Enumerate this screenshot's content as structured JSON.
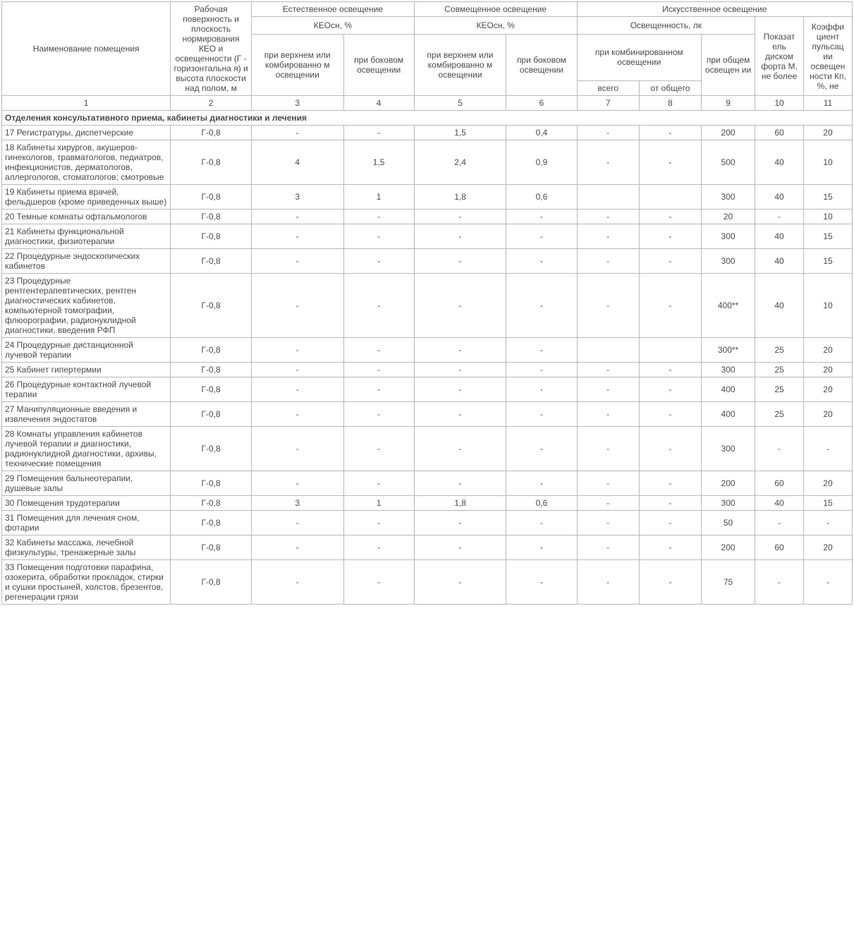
{
  "headers": {
    "room_name": "Наименование помещения",
    "surface": "Рабочая поверхность и плоскость нормирования КЕО и освещенности (Г - горизонтальна я) и высота плоскости над полом, м",
    "natural": "Естественное освещение",
    "combined": "Совмещенное освещение",
    "artificial": "Искусственное освещение",
    "keo": "КЕОсн, %",
    "top_or_comb": "при верхнем или комбированно м освещении",
    "side": "при боковом освещении",
    "illuminance": "Освещенность, лк",
    "comb_light": "при комбинированном освещении",
    "general_light": "при общем освещен ии",
    "discomfort": "Показат ель диском форта М, не более",
    "pulsation": "Коэффи циент пульсац ии освещен ности Кп, %, не",
    "total": "всего",
    "of_total": "от общего"
  },
  "colnums": [
    "1",
    "2",
    "3",
    "4",
    "5",
    "6",
    "7",
    "8",
    "9",
    "10",
    "11"
  ],
  "section_title": "Отделения консультативного приема, кабинеты диагностики и лечения",
  "rows": [
    {
      "name": "17 Регистратуры, диспетчерские",
      "c": [
        "Г-0,8",
        "-",
        "-",
        "1,5",
        "0,4",
        "-",
        "-",
        "200",
        "60",
        "20"
      ]
    },
    {
      "name": "18 Кабинеты хирургов, акушеров-гинекологов, травматологов, педиатров, инфекционистов, дерматологов, аллергологов, стоматологов; смотровые",
      "c": [
        "Г-0,8",
        "4",
        "1,5",
        "2,4",
        "0,9",
        "-",
        "-",
        "500",
        "40",
        "10"
      ]
    },
    {
      "name": "19 Кабинеты приема врачей, фельдшеров (кроме приведенных выше)",
      "c": [
        "Г-0,8",
        "3",
        "1",
        "1,8",
        "0,6",
        "",
        "",
        "300",
        "40",
        "15"
      ]
    },
    {
      "name": "20 Темные комнаты офтальмологов",
      "c": [
        "Г-0,8",
        "-",
        "-",
        "-",
        "-",
        "-",
        "-",
        "20",
        "-",
        "10"
      ]
    },
    {
      "name": "21 Кабинеты функциональной диагностики, физиотерапии",
      "c": [
        "Г-0,8",
        "-",
        "-",
        "-",
        "-",
        "-",
        "-",
        "300",
        "40",
        "15"
      ]
    },
    {
      "name": "22 Процедурные эндоскопических кабинетов",
      "c": [
        "Г-0,8",
        "-",
        "-",
        "-",
        "-",
        "-",
        "-",
        "300",
        "40",
        "15"
      ]
    },
    {
      "name": "23 Процедурные рентгентерапевтических, рентген диагностических кабинетов, компьютерной томографии, флюорографии, радионуклидной диагностики, введения РФП",
      "c": [
        "Г-0,8",
        "-",
        "-",
        "-",
        "-",
        "-",
        "-",
        "400**",
        "40",
        "10"
      ]
    },
    {
      "name": "24 Процедурные дистанционной лучевой терапии",
      "c": [
        "Г-0,8",
        "-",
        "-",
        "-",
        "-",
        "",
        "",
        "300**",
        "25",
        "20"
      ]
    },
    {
      "name": "25 Кабинет гипертермии",
      "c": [
        "Г-0,8",
        "-",
        "-",
        "-",
        "-",
        "-",
        "-",
        "300",
        "25",
        "20"
      ]
    },
    {
      "name": "26 Процедурные контактной лучевой терапии",
      "c": [
        "Г-0,8",
        "-",
        "-",
        "-",
        "-",
        "-",
        "-",
        "400",
        "25",
        "20"
      ]
    },
    {
      "name": "27 Манипуляционные введения и извлечения эндостатов",
      "c": [
        "Г-0,8",
        "-",
        "-",
        "-",
        "-",
        "-",
        "-",
        "400",
        "25",
        "20"
      ]
    },
    {
      "name": "28 Комнаты управления кабинетов лучевой терапии и диагностики, радионуклидной диагностики, архивы, технические помещения",
      "c": [
        "Г-0,8",
        "-",
        "-",
        "-",
        "-",
        "-",
        "-",
        "300",
        "-",
        "-"
      ]
    },
    {
      "name": "29 Помещения бальнеотерапии, душевые залы",
      "c": [
        "Г-0,8",
        "-",
        "-",
        "-",
        "-",
        "-",
        "-",
        "200",
        "60",
        "20"
      ]
    },
    {
      "name": "30 Помещения трудотерапии",
      "c": [
        "Г-0,8",
        "3",
        "1",
        "1,8",
        "0,6",
        "-",
        "-",
        "300",
        "40",
        "15"
      ]
    },
    {
      "name": "31 Помещения для лечения сном, фотарии",
      "c": [
        "Г-0,8",
        "-",
        "-",
        "-",
        "-",
        "-",
        "-",
        "50",
        "-",
        "-"
      ]
    },
    {
      "name": "32 Кабинеты массажа, лечебной физкультуры, тренажерные залы",
      "c": [
        "Г-0,8",
        "-",
        "-",
        "-",
        "-",
        "-",
        "-",
        "200",
        "60",
        "20"
      ]
    },
    {
      "name": "33 Помещения подготовки парафина, озокерита, обработки прокладок, стирки и сушки простыней, холстов, брезентов, регенерации грязи",
      "c": [
        "Г-0,8",
        "-",
        "-",
        "-",
        "-",
        "-",
        "-",
        "75",
        "-",
        "-"
      ]
    }
  ]
}
